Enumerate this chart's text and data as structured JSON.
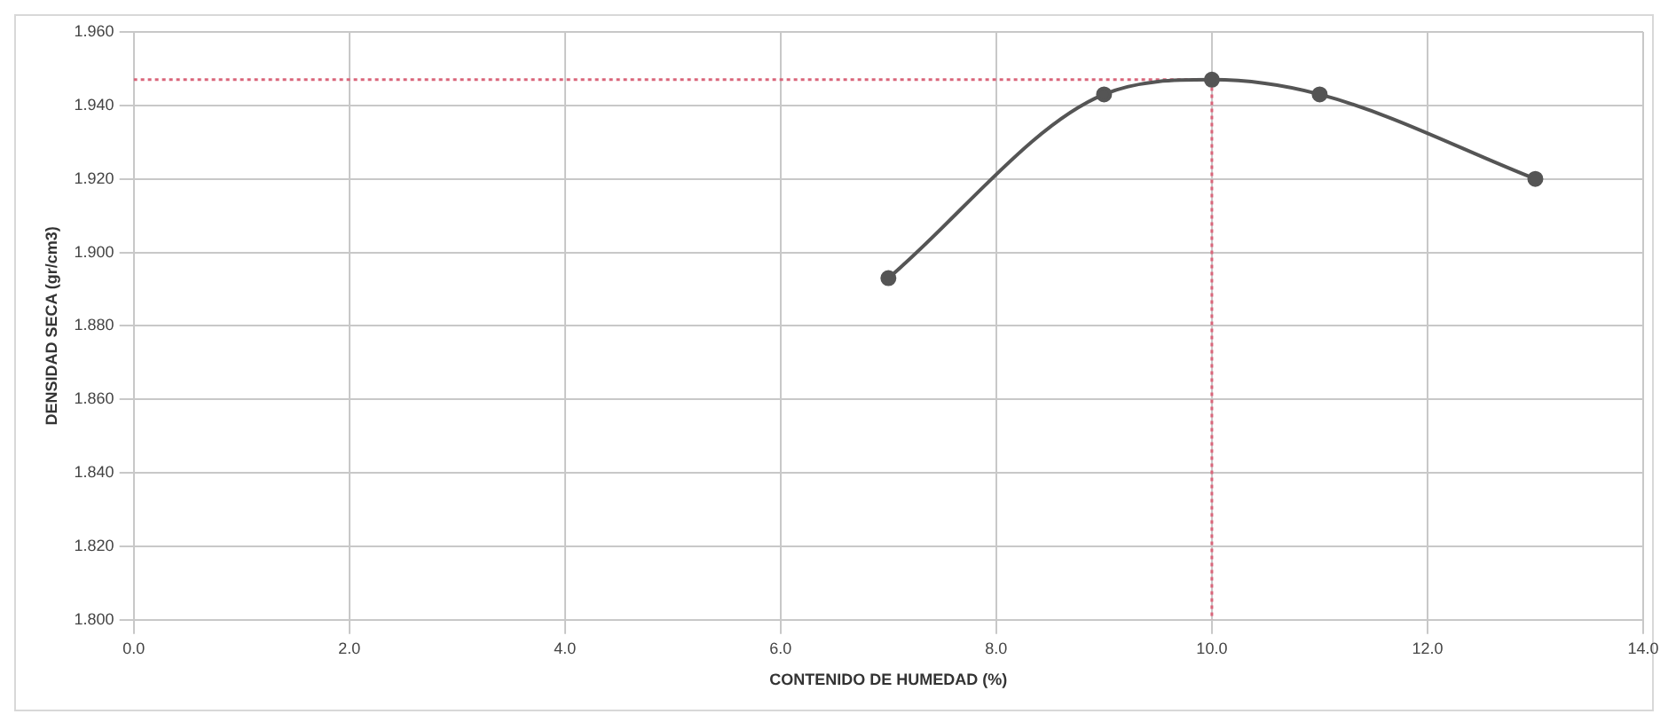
{
  "chart_data": {
    "type": "line",
    "xlabel": "CONTENIDO DE HUMEDAD (%)",
    "ylabel": "DENSIDAD SECA (gr/cm3)",
    "series": [
      {
        "color": "#555555",
        "x": [
          7.0,
          9.0,
          10.0,
          11.0,
          13.0
        ],
        "values": [
          1.893,
          1.943,
          1.947,
          1.943,
          1.92
        ],
        "marker": "circle",
        "line_style": "solid"
      },
      {
        "color": "#d9657a",
        "x": [
          0.0,
          10.0,
          10.0
        ],
        "values": [
          1.947,
          1.947,
          1.8
        ],
        "marker": "none",
        "line_style": "dotted"
      }
    ],
    "xlim": [
      0,
      14
    ],
    "xticks": [
      {
        "value": 0,
        "label": "0.0"
      },
      {
        "value": 2,
        "label": "2.0"
      },
      {
        "value": 4,
        "label": "4.0"
      },
      {
        "value": 6,
        "label": "6.0"
      },
      {
        "value": 8,
        "label": "8.0"
      },
      {
        "value": 10,
        "label": "10.0"
      },
      {
        "value": 12,
        "label": "12.0"
      },
      {
        "value": 14,
        "label": "14.0"
      }
    ],
    "ylim": [
      1.8,
      1.96
    ],
    "yticks": [
      {
        "value": 1.8,
        "label": "1.800"
      },
      {
        "value": 1.82,
        "label": "1.820"
      },
      {
        "value": 1.84,
        "label": "1.840"
      },
      {
        "value": 1.86,
        "label": "1.860"
      },
      {
        "value": 1.88,
        "label": "1.880"
      },
      {
        "value": 1.9,
        "label": "1.900"
      },
      {
        "value": 1.92,
        "label": "1.920"
      },
      {
        "value": 1.94,
        "label": "1.940"
      },
      {
        "value": 1.96,
        "label": "1.960"
      }
    ],
    "grid": true,
    "legend": false
  }
}
